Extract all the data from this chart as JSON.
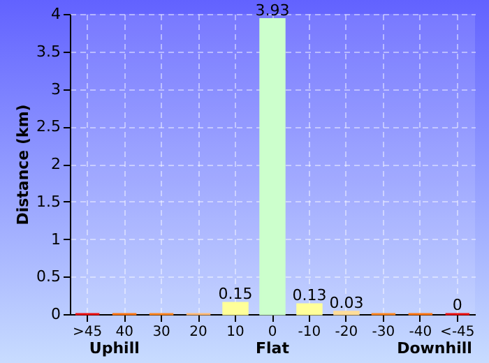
{
  "chart_data": {
    "type": "bar",
    "ylabel": "Distance (km)",
    "categories": [
      ">45",
      "40",
      "30",
      "20",
      "10",
      "0",
      "-10",
      "-20",
      "-30",
      "-40",
      "<-45"
    ],
    "values": [
      0,
      0,
      0,
      0,
      0.15,
      3.93,
      0.13,
      0.03,
      0,
      0,
      0
    ],
    "value_labels": [
      null,
      null,
      null,
      null,
      "0.15",
      "3.93",
      "0.13",
      "0.03",
      null,
      null,
      "0"
    ],
    "colors": [
      "#ee1111",
      "#ff7711",
      "#ff8822",
      "#ffbb77",
      "#ffff99",
      "#ccffcc",
      "#ffff99",
      "#ffdd99",
      "#ff8822",
      "#ff7711",
      "#ee1111"
    ],
    "ylim": [
      0,
      4
    ],
    "yticks": [
      0,
      0.5,
      1,
      1.5,
      2,
      2.5,
      3,
      3.5,
      4
    ],
    "grid": true,
    "annotations": [
      "Uphill",
      "Flat",
      "Downhill"
    ]
  }
}
